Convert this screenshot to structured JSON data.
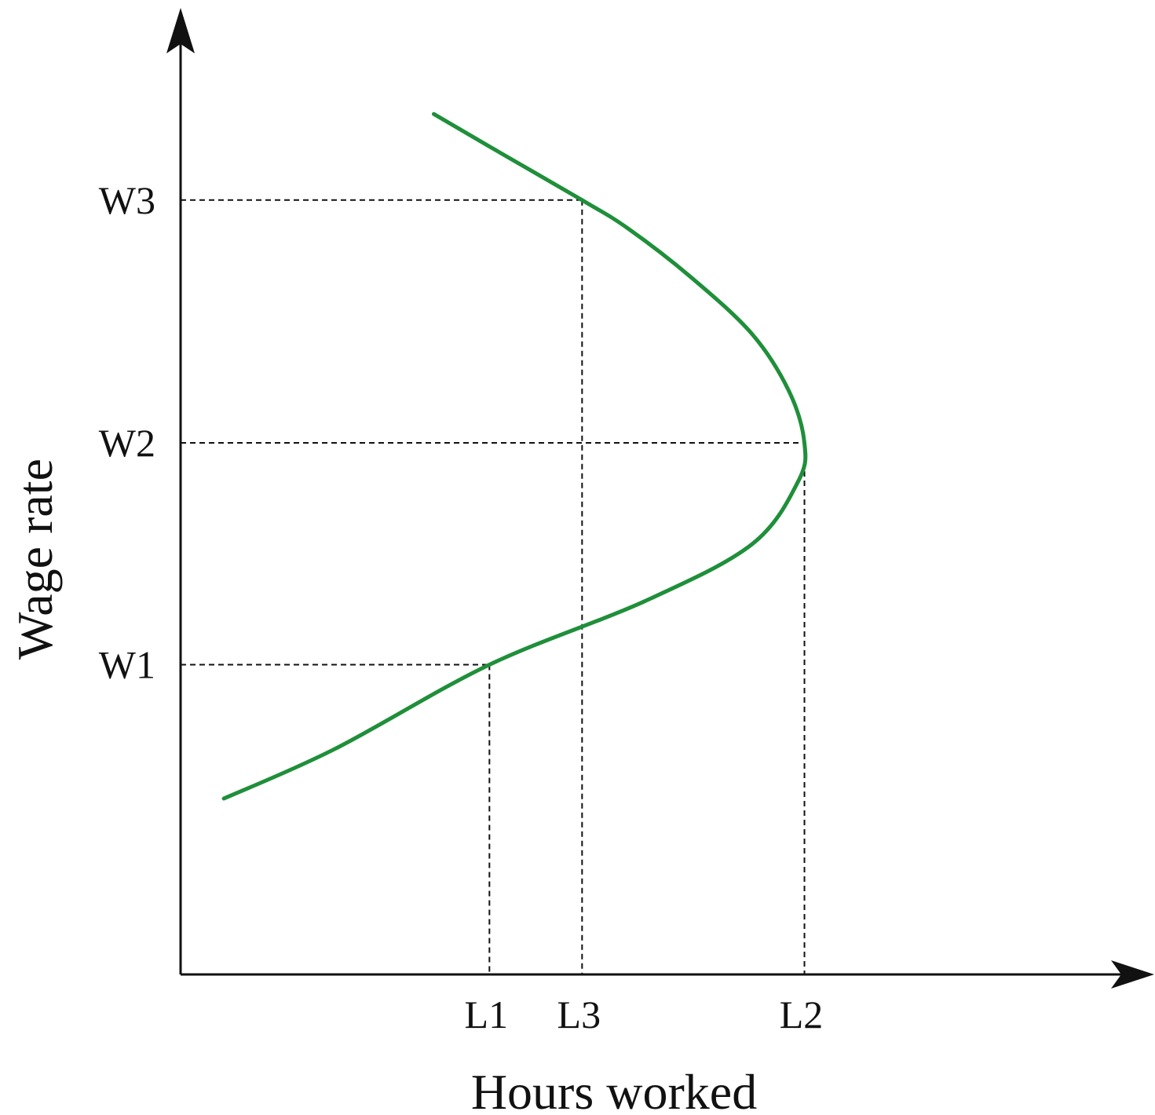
{
  "chart_data": {
    "type": "line",
    "title": "",
    "xlabel": "Hours worked",
    "ylabel": "Wage rate",
    "x_ticks": [
      "L1",
      "L3",
      "L2"
    ],
    "y_ticks": [
      "W1",
      "W2",
      "W3"
    ],
    "grid": false,
    "legend": "none",
    "series": [
      {
        "color": "#1f8f3a",
        "points": [
          {
            "x": 0.14,
            "y": 0.92
          },
          {
            "x": 0.5,
            "y": 1.18
          },
          {
            "x": 1.0,
            "y": 1.62
          },
          {
            "x": 1.5,
            "y": 1.95
          },
          {
            "x": 1.85,
            "y": 2.25
          },
          {
            "x": 2.0,
            "y": 2.58
          },
          {
            "x": 2.02,
            "y": 2.78
          },
          {
            "x": 1.97,
            "y": 3.05
          },
          {
            "x": 1.85,
            "y": 3.35
          },
          {
            "x": 1.65,
            "y": 3.65
          },
          {
            "x": 1.45,
            "y": 3.9
          },
          {
            "x": 1.3,
            "y": 4.05
          },
          {
            "x": 1.0,
            "y": 4.33
          },
          {
            "x": 0.82,
            "y": 4.5
          }
        ]
      }
    ],
    "guides": [
      {
        "tick": "W1",
        "y": 1.62,
        "to_x": 1.0,
        "x_tick": "L1"
      },
      {
        "tick": "W3",
        "y": 4.05,
        "to_x": 1.3,
        "x_tick": "L3"
      },
      {
        "tick": "W2",
        "y": 2.78,
        "to_x": 2.02,
        "x_tick": "L2"
      }
    ],
    "xlim": [
      0,
      3.0
    ],
    "ylim": [
      0,
      4.85
    ]
  }
}
